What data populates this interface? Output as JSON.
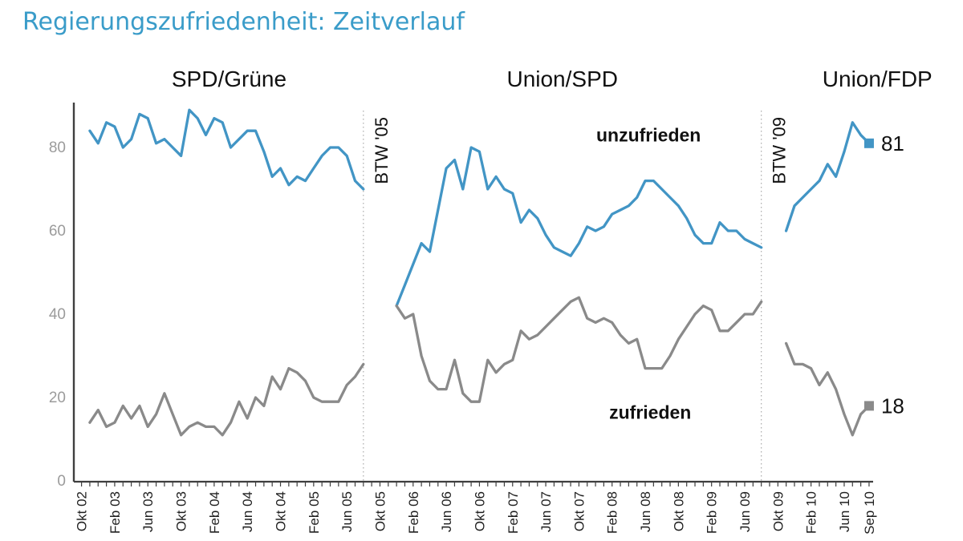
{
  "chart_data": {
    "type": "line",
    "title": "Regierungszufriedenheit: Zeitverlauf",
    "xlabel": "",
    "ylabel": "",
    "ylim": [
      0,
      90
    ],
    "yticks": [
      0,
      20,
      40,
      60,
      80
    ],
    "grid": false,
    "legend_position": "none",
    "total_months": 96,
    "x_tick_labels": [
      {
        "label": "Okt 02",
        "month": 0
      },
      {
        "label": "Feb 03",
        "month": 4
      },
      {
        "label": "Jun 03",
        "month": 8
      },
      {
        "label": "Okt 03",
        "month": 12
      },
      {
        "label": "Feb 04",
        "month": 16
      },
      {
        "label": "Jun 04",
        "month": 20
      },
      {
        "label": "Okt 04",
        "month": 24
      },
      {
        "label": "Feb 05",
        "month": 28
      },
      {
        "label": "Jun 05",
        "month": 32
      },
      {
        "label": "Okt 05",
        "month": 36
      },
      {
        "label": "Feb 06",
        "month": 40
      },
      {
        "label": "Jun 06",
        "month": 44
      },
      {
        "label": "Okt 06",
        "month": 48
      },
      {
        "label": "Feb 07",
        "month": 52
      },
      {
        "label": "Jun 07",
        "month": 56
      },
      {
        "label": "Okt 07",
        "month": 60
      },
      {
        "label": "Feb 08",
        "month": 64
      },
      {
        "label": "Jun 08",
        "month": 68
      },
      {
        "label": "Okt 08",
        "month": 72
      },
      {
        "label": "Feb 09",
        "month": 76
      },
      {
        "label": "Jun 09",
        "month": 80
      },
      {
        "label": "Okt 09",
        "month": 84
      },
      {
        "label": "Feb 10",
        "month": 88
      },
      {
        "label": "Jun 10",
        "month": 92
      },
      {
        "label": "Sep 10",
        "month": 95
      }
    ],
    "period_headers": [
      {
        "label": "SPD/Grüne",
        "center_month": 17.8
      },
      {
        "label": "Union/SPD",
        "center_month": 58
      },
      {
        "label": "Union/FDP",
        "center_month": 96
      }
    ],
    "events": [
      {
        "label": "BTW '05",
        "month": 34
      },
      {
        "label": "BTW '09",
        "month": 82
      }
    ],
    "series": [
      {
        "name": "unzufrieden",
        "color": "#4295c5",
        "end_label": "81",
        "segments": [
          {
            "start_month": 1,
            "values": [
              84,
              81,
              86,
              85,
              80,
              82,
              88,
              87,
              81,
              82,
              80,
              78,
              89,
              87,
              83,
              87,
              86,
              80,
              82,
              84,
              84,
              79,
              73,
              75,
              71,
              73,
              72,
              75,
              78,
              80,
              80,
              78,
              72,
              70
            ]
          },
          {
            "start_month": 38,
            "values": [
              42,
              47,
              52,
              57,
              55,
              65,
              75,
              77,
              70,
              80,
              79,
              70,
              73,
              70,
              69,
              62,
              65,
              63,
              59,
              56,
              55,
              54,
              57,
              61,
              60,
              61,
              64,
              65,
              66,
              68,
              72,
              72,
              70,
              68,
              66,
              63,
              59,
              57,
              57,
              62,
              60,
              60,
              58,
              57,
              56
            ]
          },
          {
            "start_month": 85,
            "values": [
              60,
              66,
              68,
              70,
              72,
              76,
              73,
              79,
              86,
              83,
              81
            ]
          }
        ]
      },
      {
        "name": "zufrieden",
        "color": "#8a8a8a",
        "end_label": "18",
        "segments": [
          {
            "start_month": 1,
            "values": [
              14,
              17,
              13,
              14,
              18,
              15,
              18,
              13,
              16,
              21,
              16,
              11,
              13,
              14,
              13,
              13,
              11,
              14,
              19,
              15,
              20,
              18,
              25,
              22,
              27,
              26,
              24,
              20,
              19,
              19,
              19,
              23,
              25,
              28
            ]
          },
          {
            "start_month": 38,
            "values": [
              42,
              39,
              40,
              30,
              24,
              22,
              22,
              29,
              21,
              19,
              19,
              29,
              26,
              28,
              29,
              36,
              34,
              35,
              37,
              39,
              41,
              43,
              44,
              39,
              38,
              39,
              38,
              35,
              33,
              34,
              27,
              27,
              27,
              30,
              34,
              37,
              40,
              42,
              41,
              36,
              36,
              38,
              40,
              40,
              43
            ]
          },
          {
            "start_month": 85,
            "values": [
              33,
              28,
              28,
              27,
              23,
              26,
              22,
              16,
              11,
              16,
              18
            ]
          }
        ]
      }
    ],
    "annotations": [
      {
        "text": "unzufrieden",
        "month": 68.4,
        "value": 83,
        "bold": true
      },
      {
        "text": "zufrieden",
        "month": 68.6,
        "value": 16.4,
        "bold": true
      }
    ],
    "colors": {
      "title": "#3a9cc9",
      "axis": "#3f3f3f",
      "x_tick_label": "#1f1f1f",
      "y_tick_label": "#9b9b9b",
      "event_line": "#aaaaaa",
      "text": "#111111"
    }
  }
}
